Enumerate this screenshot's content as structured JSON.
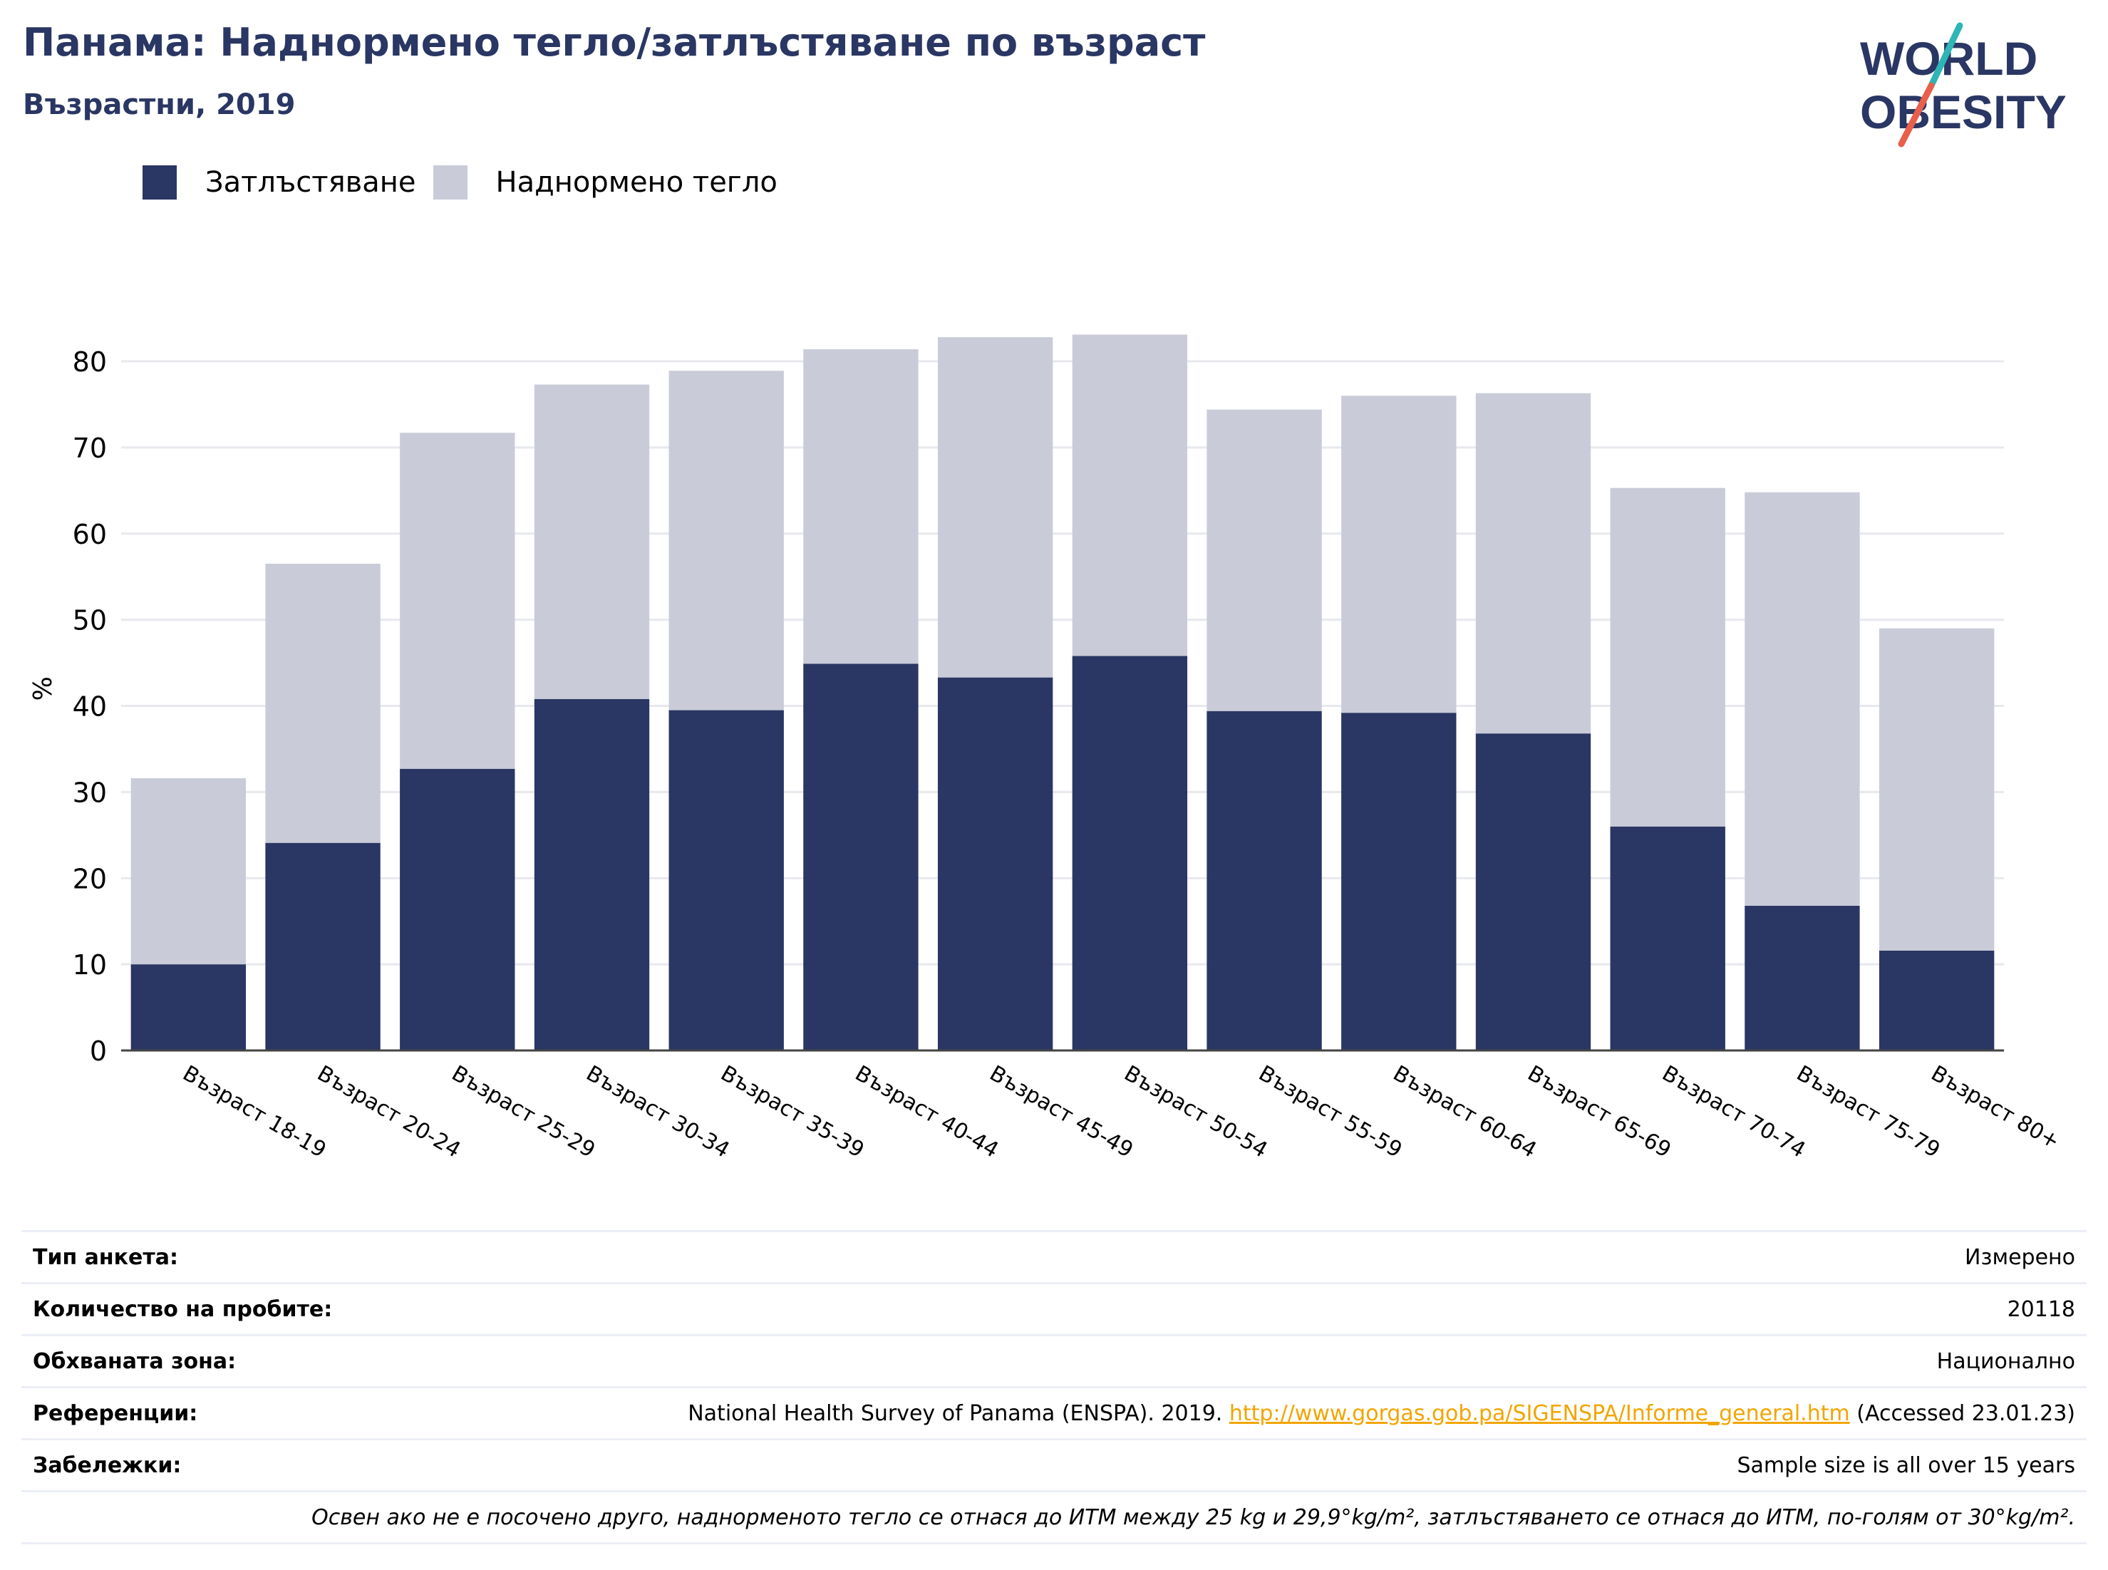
{
  "header": {
    "title": "Панама: Наднормено тегло/затлъстяване по възраст",
    "subtitle": "Възрастни, 2019"
  },
  "logo": {
    "line1": "WORLD",
    "line2": "OBESITY",
    "slash_colors": [
      "#2fb5b5",
      "#e8604c"
    ]
  },
  "colors": {
    "obesity": "#2a3663",
    "overweight": "#c9ccd8",
    "title": "#2a3663",
    "link": "#f2a500"
  },
  "chart_data": {
    "type": "bar",
    "stacked": true,
    "categories": [
      "Възраст 18-19",
      "Възраст 20-24",
      "Възраст 25-29",
      "Възраст 30-34",
      "Възраст 35-39",
      "Възраст 40-44",
      "Възраст 45-49",
      "Възраст 50-54",
      "Възраст 55-59",
      "Възраст 60-64",
      "Възраст 65-69",
      "Възраст 70-74",
      "Възраст 75-79",
      "Възраст 80+"
    ],
    "series": [
      {
        "name": "Затлъстяване",
        "color": "#2a3663",
        "values": [
          10.0,
          24.1,
          32.7,
          40.8,
          39.5,
          44.9,
          43.3,
          45.8,
          39.4,
          39.2,
          36.8,
          26.0,
          16.8,
          11.6
        ]
      },
      {
        "name": "Наднормено тегло",
        "color": "#c9ccd8",
        "values": [
          21.6,
          32.4,
          39.0,
          36.5,
          39.4,
          36.5,
          39.5,
          37.3,
          35.0,
          36.8,
          39.5,
          39.3,
          48.0,
          37.4
        ]
      }
    ],
    "ylabel": "%",
    "ylim": [
      0,
      84
    ],
    "yticks": [
      0,
      10,
      20,
      30,
      40,
      50,
      60,
      70,
      80
    ],
    "grid": true,
    "legend_position": "top-left"
  },
  "info": {
    "survey_type_label": "Тип анкета:",
    "survey_type_value": "Измерено",
    "sample_size_label": "Количество на пробите:",
    "sample_size_value": "20118",
    "area_label": "Обхваната зона:",
    "area_value": "Национално",
    "references_label": "Референции:",
    "references_prefix": "National Health Survey of Panama (ENSPA). 2019.",
    "references_link": "http://www.gorgas.gob.pa/SIGENSPA/Informe_general.htm",
    "references_suffix": "(Accessed 23.01.23)",
    "notes_label": "Забележки:",
    "notes_value": "Sample size is all over 15 years",
    "definition_note": "Освен ако не е посочено друго, наднорменото тегло се отнася до ИТМ между 25 kg и 29,9°kg/m², затлъстяването се отнася до ИТМ, по-голям от 30°kg/m²."
  }
}
